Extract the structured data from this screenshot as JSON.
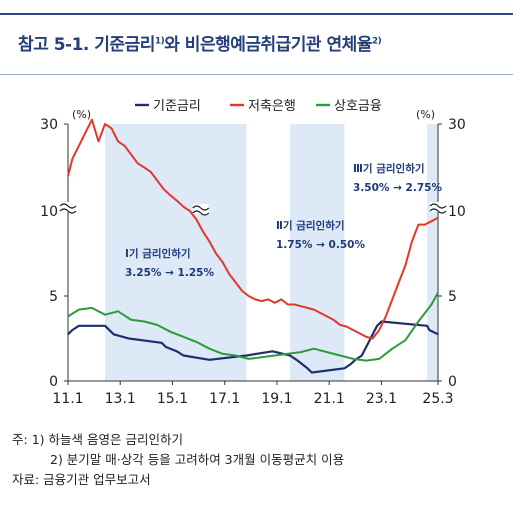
{
  "header": {
    "title": "참고 5-1. 기준금리",
    "title_sup1": "1)",
    "title_mid": "와 비은행예금취급기관 연체율",
    "title_sup2": "2)"
  },
  "chart_data": {
    "type": "line",
    "unit_left": "(%)",
    "unit_right": "(%)",
    "ylim": [
      0,
      30
    ],
    "y_ticks": [
      "0",
      "5",
      "10",
      "30"
    ],
    "axis_break": true,
    "x_ticks": [
      "11.1",
      "13.1",
      "15.1",
      "17.1",
      "19.1",
      "21.1",
      "23.1",
      "25.3"
    ],
    "legend_position": "top-center",
    "colors": {
      "base_rate": "#1f2f6e",
      "savings_bank": "#e0392b",
      "mutual_finance": "#2e9a3a",
      "shade": "#dde9f6"
    },
    "series": [
      {
        "key": "base_rate",
        "name": "기준금리",
        "x": [
          "2011-01",
          "2011-03",
          "2011-06",
          "2012-06",
          "2012-10",
          "2013-05",
          "2014-08",
          "2014-10",
          "2015-03",
          "2015-06",
          "2016-06",
          "2017-11",
          "2018-11",
          "2019-07",
          "2019-10",
          "2020-03",
          "2020-05",
          "2021-08",
          "2021-11",
          "2022-01",
          "2022-04",
          "2022-05",
          "2022-07",
          "2022-08",
          "2022-10",
          "2022-11",
          "2023-01",
          "2024-10",
          "2024-11",
          "2025-03"
        ],
        "values": [
          2.75,
          3.0,
          3.25,
          3.25,
          2.75,
          2.5,
          2.25,
          2.0,
          1.75,
          1.5,
          1.25,
          1.5,
          1.75,
          1.5,
          1.25,
          0.75,
          0.5,
          0.75,
          1.0,
          1.25,
          1.5,
          1.75,
          2.25,
          2.5,
          3.0,
          3.25,
          3.5,
          3.25,
          3.0,
          2.75
        ]
      },
      {
        "key": "savings_bank",
        "name": "저축은행",
        "x": [
          "2011-01",
          "2011-03",
          "2011-06",
          "2011-09",
          "2011-12",
          "2012-03",
          "2012-06",
          "2012-09",
          "2012-12",
          "2013-03",
          "2013-06",
          "2013-09",
          "2013-12",
          "2014-03",
          "2014-06",
          "2014-09",
          "2014-12",
          "2015-03",
          "2015-06",
          "2015-09",
          "2015-12",
          "2016-03",
          "2016-06",
          "2016-09",
          "2016-12",
          "2017-03",
          "2017-06",
          "2017-09",
          "2017-12",
          "2018-03",
          "2018-06",
          "2018-09",
          "2018-12",
          "2019-03",
          "2019-06",
          "2019-09",
          "2019-12",
          "2020-03",
          "2020-06",
          "2020-09",
          "2020-12",
          "2021-03",
          "2021-06",
          "2021-09",
          "2021-12",
          "2022-03",
          "2022-06",
          "2022-09",
          "2022-12",
          "2023-03",
          "2023-06",
          "2023-09",
          "2023-12",
          "2024-03",
          "2024-06",
          "2024-09",
          "2024-12",
          "2025-03"
        ],
        "values": [
          14.0,
          16.0,
          17.5,
          19.0,
          20.5,
          18.0,
          20.0,
          19.5,
          18.0,
          17.5,
          16.5,
          15.5,
          15.0,
          14.5,
          13.5,
          12.5,
          11.8,
          11.2,
          10.5,
          10.0,
          9.5,
          8.8,
          8.2,
          7.5,
          7.0,
          6.3,
          5.8,
          5.3,
          5.0,
          4.8,
          4.7,
          4.8,
          4.6,
          4.8,
          4.5,
          4.5,
          4.4,
          4.3,
          4.2,
          4.0,
          3.8,
          3.6,
          3.3,
          3.2,
          3.0,
          2.8,
          2.6,
          2.5,
          3.0,
          3.8,
          4.8,
          5.8,
          6.8,
          8.2,
          9.2,
          9.2,
          9.4,
          9.6
        ]
      },
      {
        "key": "mutual_finance",
        "name": "상호금융",
        "x": [
          "2011-01",
          "2011-06",
          "2011-12",
          "2012-06",
          "2012-12",
          "2013-06",
          "2013-12",
          "2014-06",
          "2014-12",
          "2015-06",
          "2015-12",
          "2016-06",
          "2016-12",
          "2017-06",
          "2017-12",
          "2018-06",
          "2018-12",
          "2019-06",
          "2019-12",
          "2020-06",
          "2020-12",
          "2021-06",
          "2021-12",
          "2022-06",
          "2022-12",
          "2023-06",
          "2023-12",
          "2024-06",
          "2024-12",
          "2025-03"
        ],
        "values": [
          3.8,
          4.2,
          4.3,
          3.9,
          4.1,
          3.6,
          3.5,
          3.3,
          2.9,
          2.6,
          2.3,
          1.9,
          1.6,
          1.5,
          1.3,
          1.4,
          1.5,
          1.6,
          1.7,
          1.9,
          1.7,
          1.5,
          1.3,
          1.2,
          1.3,
          1.9,
          2.4,
          3.5,
          4.5,
          5.2
        ]
      }
    ],
    "shaded_periods": [
      {
        "label": "Ⅰ기 금리인하기",
        "range_text": "3.25% → 1.25%",
        "start": "2012-06",
        "end": "2017-11"
      },
      {
        "label": "Ⅱ기 금리인하기",
        "range_text": "1.75% → 0.50%",
        "start": "2019-07",
        "end": "2021-08"
      },
      {
        "label": "Ⅲ기 금리인하기",
        "range_text": "3.50% → 2.75%",
        "start": "2024-10",
        "end": "2025-03"
      }
    ]
  },
  "notes": {
    "note_label": "주:",
    "note1": "1) 하늘색 음영은 금리인하기",
    "note2": "2) 분기말 매·상각 등을 고려하여 3개월 이동평균치 이용",
    "source": "자료: 금융기관 업무보고서"
  }
}
